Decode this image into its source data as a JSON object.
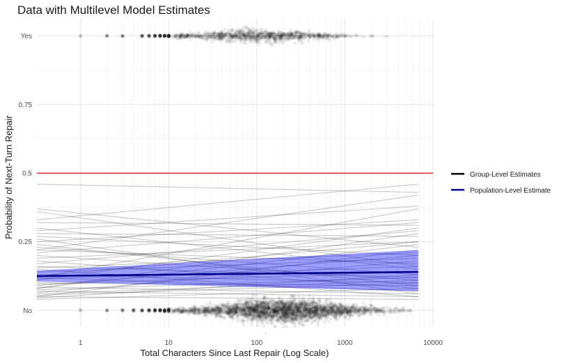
{
  "chart_data": {
    "type": "scatter",
    "title": "Data with Multilevel Model Estimates",
    "xlabel": "Total Characters Since Last Repair (Log Scale)",
    "ylabel": "Probability of Next-Turn Repair",
    "x_scale": "log10",
    "xlim": [
      0.32,
      10000
    ],
    "ylim": [
      -0.06,
      1.06
    ],
    "x_ticks": [
      1,
      10,
      100,
      1000,
      10000
    ],
    "x_tick_labels": [
      "1",
      "10",
      "100",
      "1000",
      "10000"
    ],
    "y_ticks": [
      0,
      0.25,
      0.5,
      0.75,
      1
    ],
    "y_tick_labels": [
      "No",
      "0.25",
      "0.5",
      "0.75",
      "Yes"
    ],
    "grid": true,
    "reference_line": {
      "y": 0.5,
      "color": "#dd0000"
    },
    "legend": {
      "position": "right",
      "entries": [
        {
          "label": "Group-Level Estimates",
          "color": "#000000"
        },
        {
          "label": "Population-Level Estimate",
          "color": "#00008b"
        }
      ]
    },
    "population_estimate": {
      "x": [
        0.32,
        6800
      ],
      "y": [
        0.125,
        0.14
      ],
      "ci_lower": [
        0.105,
        0.07
      ],
      "ci_upper": [
        0.145,
        0.22
      ],
      "color": "#00008b",
      "ribbon_color": "#0000ff"
    },
    "group_estimates": {
      "x_range": [
        0.32,
        6800
      ],
      "lines": [
        [
          0.46,
          0.43
        ],
        [
          0.37,
          0.23
        ],
        [
          0.36,
          0.16
        ],
        [
          0.33,
          0.46
        ],
        [
          0.32,
          0.31
        ],
        [
          0.3,
          0.15
        ],
        [
          0.29,
          0.38
        ],
        [
          0.28,
          0.27
        ],
        [
          0.27,
          0.2
        ],
        [
          0.26,
          0.06
        ],
        [
          0.25,
          0.33
        ],
        [
          0.24,
          0.09
        ],
        [
          0.23,
          0.13
        ],
        [
          0.22,
          0.17
        ],
        [
          0.21,
          0.32
        ],
        [
          0.2,
          0.11
        ],
        [
          0.19,
          0.25
        ],
        [
          0.18,
          0.08
        ],
        [
          0.17,
          0.29
        ],
        [
          0.16,
          0.12
        ],
        [
          0.155,
          0.21
        ],
        [
          0.15,
          0.05
        ],
        [
          0.14,
          0.19
        ],
        [
          0.13,
          0.1
        ],
        [
          0.125,
          0.25
        ],
        [
          0.12,
          0.07
        ],
        [
          0.115,
          0.16
        ],
        [
          0.11,
          0.3
        ],
        [
          0.1,
          0.09
        ],
        [
          0.095,
          0.14
        ],
        [
          0.09,
          0.2
        ],
        [
          0.085,
          0.06
        ],
        [
          0.08,
          0.24
        ],
        [
          0.075,
          0.12
        ],
        [
          0.07,
          0.05
        ],
        [
          0.065,
          0.18
        ],
        [
          0.06,
          0.11
        ],
        [
          0.055,
          0.1
        ],
        [
          0.05,
          0.04
        ],
        [
          0.045,
          0.13
        ],
        [
          0.04,
          0.08
        ],
        [
          0.22,
          0.42
        ],
        [
          0.12,
          0.37
        ],
        [
          0.08,
          0.28
        ],
        [
          0.05,
          0.22
        ]
      ]
    },
    "points": {
      "outcome_no": {
        "y": 0,
        "log10_x_center": 2.3,
        "log10_x_sd": 0.55,
        "count": 2600,
        "discrete_x": [
          1,
          2,
          3,
          4,
          5,
          6,
          7,
          8,
          9,
          10
        ]
      },
      "outcome_yes": {
        "y": 1,
        "log10_x_center": 2.0,
        "log10_x_sd": 0.5,
        "count": 900,
        "discrete_x": [
          1,
          2,
          3,
          5,
          6,
          7,
          8,
          9,
          10
        ]
      }
    }
  }
}
